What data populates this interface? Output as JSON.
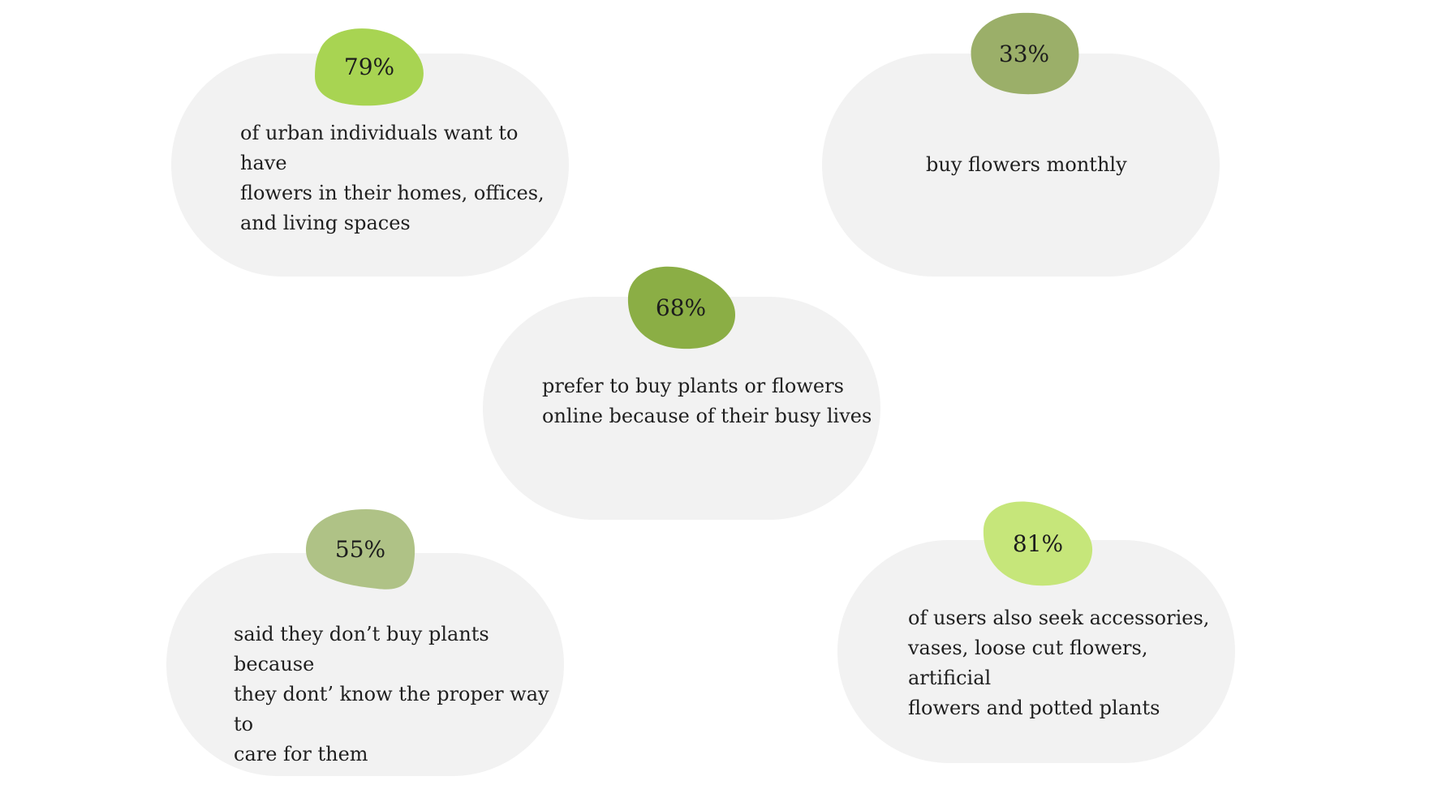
{
  "stats": [
    {
      "percent": "79%",
      "description": "of urban individuals want to have\nflowers in their homes, offices,\nand living spaces",
      "color": "#a8d452"
    },
    {
      "percent": "33%",
      "description": "buy flowers monthly",
      "color": "#9baf69"
    },
    {
      "percent": "68%",
      "description": "prefer to buy plants or flowers\nonline because of their busy lives",
      "color": "#8bae45"
    },
    {
      "percent": "55%",
      "description": "said they don’t buy plants because\nthey dont’ know the proper way to\ncare for them",
      "color": "#afc286"
    },
    {
      "percent": "81%",
      "description": "of users also seek accessories,\nvases, loose cut flowers, artificial\nflowers and potted plants",
      "color": "#c6e67a"
    }
  ]
}
